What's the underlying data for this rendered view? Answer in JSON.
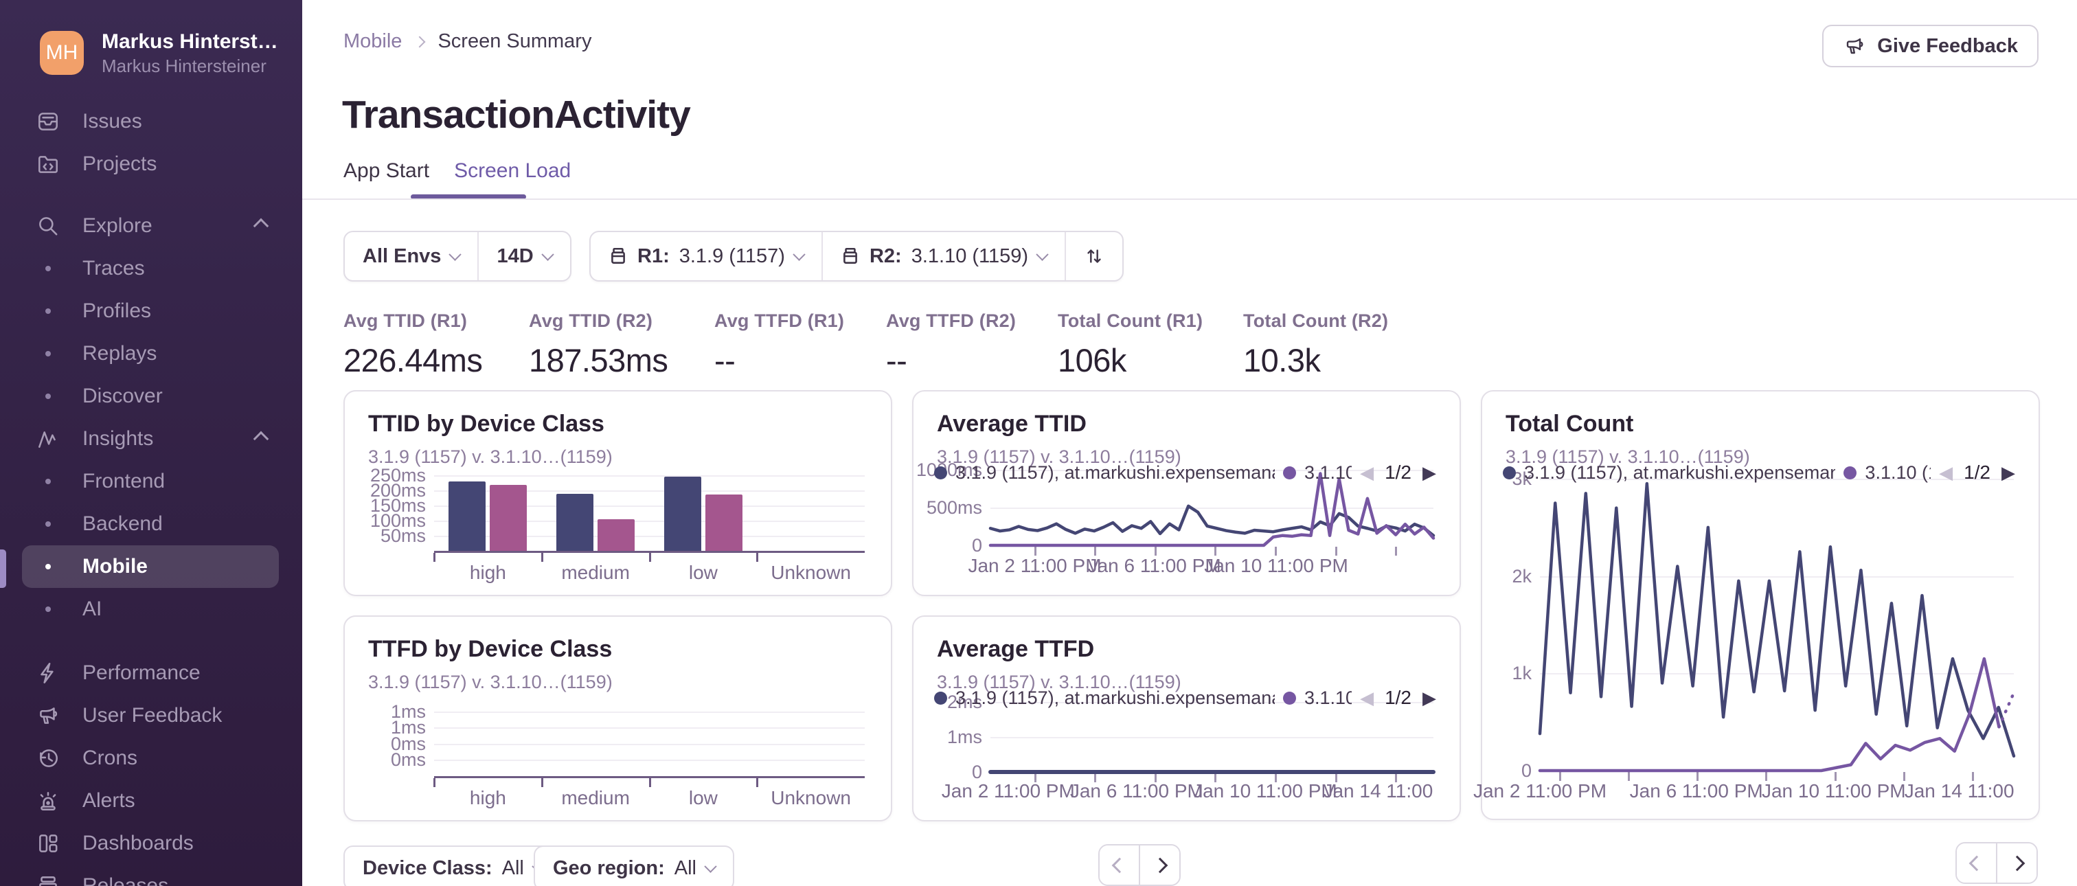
{
  "sidebar": {
    "user": {
      "initials": "MH",
      "name": "Markus Hinterst…",
      "org": "Markus Hintersteiner"
    },
    "items": [
      {
        "label": "Issues",
        "icon": "issues-icon",
        "type": "top"
      },
      {
        "label": "Projects",
        "icon": "projects-icon",
        "type": "top"
      },
      {
        "label": "Explore",
        "icon": "search-icon",
        "type": "group",
        "chevron": "up"
      },
      {
        "label": "Traces",
        "type": "child"
      },
      {
        "label": "Profiles",
        "type": "child"
      },
      {
        "label": "Replays",
        "type": "child"
      },
      {
        "label": "Discover",
        "type": "child"
      },
      {
        "label": "Insights",
        "icon": "insights-icon",
        "type": "group",
        "chevron": "up"
      },
      {
        "label": "Frontend",
        "type": "child"
      },
      {
        "label": "Backend",
        "type": "child"
      },
      {
        "label": "Mobile",
        "type": "child",
        "selected": true
      },
      {
        "label": "AI",
        "type": "child"
      },
      {
        "label": "Performance",
        "icon": "lightning-icon",
        "type": "top"
      },
      {
        "label": "User Feedback",
        "icon": "megaphone-icon",
        "type": "top"
      },
      {
        "label": "Crons",
        "icon": "clock-icon",
        "type": "top"
      },
      {
        "label": "Alerts",
        "icon": "siren-icon",
        "type": "top"
      },
      {
        "label": "Dashboards",
        "icon": "dashboard-icon",
        "type": "top"
      },
      {
        "label": "Releases",
        "icon": "releases-icon",
        "type": "top"
      }
    ]
  },
  "header": {
    "breadcrumb": {
      "parent": "Mobile",
      "current": "Screen Summary"
    },
    "title": "TransactionActivity",
    "tabs": [
      {
        "label": "App Start",
        "active": false
      },
      {
        "label": "Screen Load",
        "active": true
      }
    ],
    "feedback_button": "Give Feedback"
  },
  "filters": {
    "env": "All Envs",
    "period": "14D",
    "r1_label": "R1:",
    "r1_value": "3.1.9 (1157)",
    "r2_label": "R2:",
    "r2_value": "3.1.10 (1159)"
  },
  "metrics": [
    {
      "label": "Avg TTID (R1)",
      "value": "226.44ms"
    },
    {
      "label": "Avg TTID (R2)",
      "value": "187.53ms"
    },
    {
      "label": "Avg TTFD (R1)",
      "value": "--"
    },
    {
      "label": "Avg TTFD (R2)",
      "value": "--"
    },
    {
      "label": "Total Count (R1)",
      "value": "106k"
    },
    {
      "label": "Total Count (R2)",
      "value": "10.3k"
    }
  ],
  "colors": {
    "accent_purple": "#6f5ba8",
    "navy_series": "#444674",
    "pink_series": "#a4568e",
    "purple_series": "#7656a2",
    "sidebar_bg": "#36254c",
    "avatar_orange": "#f2a06a"
  },
  "chart_data": [
    {
      "id": "ttid-device-class",
      "type": "bar",
      "title": "TTID by Device Class",
      "subtitle": "3.1.9 (1157) v. 3.1.10…(1159)",
      "categories": [
        "high",
        "medium",
        "low",
        "Unknown"
      ],
      "unit": "ms",
      "ylim": [
        0,
        260
      ],
      "yticks": [
        {
          "v": 50,
          "label": "50ms"
        },
        {
          "v": 100,
          "label": "100ms"
        },
        {
          "v": 150,
          "label": "150ms"
        },
        {
          "v": 200,
          "label": "200ms"
        },
        {
          "v": 250,
          "label": "250ms"
        }
      ],
      "series": [
        {
          "name": "3.1.9 (1157)",
          "color": "#444674",
          "values": [
            230,
            190,
            247,
            0
          ]
        },
        {
          "name": "3.1.10 (1159)",
          "color": "#a4568e",
          "values": [
            220,
            105,
            188,
            0
          ]
        }
      ]
    },
    {
      "id": "avg-ttid",
      "type": "line",
      "title": "Average TTID",
      "subtitle": "3.1.9 (1157) v. 3.1.10…(1159)",
      "legend": {
        "r1": "3.1.9 (1157), at.markushi.expensemanage",
        "r2": "3.1.10",
        "page": "1/2"
      },
      "unit": "ms",
      "ymax": 1000,
      "yticks": [
        {
          "v": 0,
          "label": "0"
        },
        {
          "v": 500,
          "label": "500ms"
        },
        {
          "v": 1000,
          "label": "1000ms"
        }
      ],
      "x_labels": [
        {
          "text": "Jan 2 11:00 PM",
          "f": 0.1
        },
        {
          "text": "Jan 6 11:00 PM",
          "f": 0.37
        },
        {
          "text": "Jan 10 11:00 PM",
          "f": 0.645
        }
      ],
      "series": [
        {
          "name": "3.1.9 (1157), at.markushi.expensemanage",
          "color": "#444674",
          "values": [
            225,
            190,
            205,
            250,
            210,
            195,
            230,
            285,
            210,
            160,
            215,
            190,
            240,
            300,
            185,
            260,
            225,
            315,
            155,
            285,
            205,
            520,
            440,
            255,
            225,
            195,
            175,
            160,
            200,
            190,
            180,
            205,
            225,
            245,
            205,
            310,
            260,
            420,
            370,
            255,
            225,
            190,
            255,
            230,
            190,
            280,
            230,
            130
          ]
        },
        {
          "name": "3.1.10",
          "color": "#7656a2",
          "values": [
            0,
            0,
            0,
            0,
            0,
            0,
            0,
            0,
            0,
            0,
            0,
            0,
            0,
            0,
            0,
            0,
            0,
            0,
            0,
            0,
            0,
            0,
            0,
            0,
            0,
            0,
            0,
            0,
            0,
            0,
            110,
            130,
            120,
            140,
            130,
            950,
            130,
            880,
            200,
            150,
            620,
            160,
            260,
            140,
            280,
            150,
            240,
            95
          ]
        }
      ]
    },
    {
      "id": "total-count",
      "type": "line",
      "title": "Total Count",
      "subtitle": "3.1.9 (1157) v. 3.1.10…(1159)",
      "legend": {
        "r1": "3.1.9 (1157), at.markushi.expensemanage",
        "r2": "3.1.10 (1",
        "page": "1/2"
      },
      "unit": "count",
      "ymax": 3050,
      "yticks": [
        {
          "v": 0,
          "label": "0"
        },
        {
          "v": 1000,
          "label": "1k"
        },
        {
          "v": 2000,
          "label": "2k"
        },
        {
          "v": 3000,
          "label": "3k"
        }
      ],
      "x_labels": [
        {
          "text": "Jan 2 11:00 PM",
          "f": 0.0
        },
        {
          "text": "Jan 6 11:00 PM",
          "f": 0.33
        },
        {
          "text": "Jan 10 11:00 PM",
          "f": 0.62
        },
        {
          "text": "Jan 14 11:00",
          "f": 0.885
        }
      ],
      "series": [
        {
          "name": "3.1.9 (1157), at.markushi.expensemanage",
          "color": "#444674",
          "values": [
            380,
            2750,
            800,
            2850,
            760,
            2700,
            660,
            2950,
            900,
            2100,
            870,
            2500,
            550,
            1950,
            810,
            1950,
            820,
            2250,
            620,
            2300,
            870,
            2060,
            580,
            1720,
            460,
            1800,
            440,
            1150,
            620,
            330,
            650,
            150
          ]
        },
        {
          "name": "3.1.10 (1159)",
          "color": "#7656a2",
          "dash_from": 31,
          "values": [
            0,
            0,
            0,
            0,
            0,
            0,
            0,
            0,
            0,
            0,
            0,
            0,
            0,
            0,
            0,
            0,
            0,
            0,
            0,
            0,
            30,
            60,
            280,
            120,
            260,
            210,
            290,
            330,
            200,
            580,
            1150,
            450,
            800
          ]
        }
      ]
    },
    {
      "id": "ttfd-device-class",
      "type": "bar",
      "title": "TTFD by Device Class",
      "subtitle": "3.1.9 (1157) v. 3.1.10…(1159)",
      "categories": [
        "high",
        "medium",
        "low",
        "Unknown"
      ],
      "unit": "ms",
      "ylim": [
        0,
        1.21
      ],
      "yticks": [
        {
          "v": 0.25,
          "label": "0ms"
        },
        {
          "v": 0.5,
          "label": "0ms"
        },
        {
          "v": 0.75,
          "label": "1ms"
        },
        {
          "v": 1,
          "label": "1ms"
        }
      ],
      "series": [
        {
          "name": "3.1.9 (1157)",
          "color": "#444674",
          "values": [
            0,
            0,
            0,
            0
          ]
        },
        {
          "name": "3.1.10 (1159)",
          "color": "#a4568e",
          "values": [
            0,
            0,
            0,
            0
          ]
        }
      ]
    },
    {
      "id": "avg-ttfd",
      "type": "line",
      "title": "Average TTFD",
      "subtitle": "3.1.9 (1157) v. 3.1.10…(1159)",
      "legend": {
        "r1": "3.1.9 (1157), at.markushi.expensemanage",
        "r2": "3.1.10",
        "page": "1/2"
      },
      "unit": "ms",
      "ymax": 2.2,
      "yticks": [
        {
          "v": 0,
          "label": "0"
        },
        {
          "v": 1,
          "label": "1ms"
        },
        {
          "v": 2,
          "label": "2ms"
        }
      ],
      "x_labels": [
        {
          "text": "Jan 2 11:00 PM",
          "f": 0.04
        },
        {
          "text": "Jan 6 11:00 PM",
          "f": 0.33
        },
        {
          "text": "Jan 10 11:00 PM",
          "f": 0.62
        },
        {
          "text": "Jan 14 11:00",
          "f": 0.875
        }
      ],
      "series": [
        {
          "name": "3.1.9 (1157), at.markushi.expensemanage",
          "color": "#444674",
          "width": 6,
          "values": [
            0,
            0,
            0,
            0,
            0,
            0,
            0,
            0,
            0,
            0,
            0,
            0,
            0,
            0,
            0,
            0,
            0,
            0,
            0,
            0,
            0,
            0,
            0,
            0,
            0,
            0,
            0,
            0,
            0,
            0,
            0,
            0
          ]
        },
        {
          "name": "3.1.10",
          "color": "#7656a2",
          "values": []
        }
      ]
    }
  ],
  "footer": {
    "filters": [
      {
        "label": "Device Class:",
        "value": "All"
      },
      {
        "label": "Geo region:",
        "value": "All"
      }
    ]
  }
}
